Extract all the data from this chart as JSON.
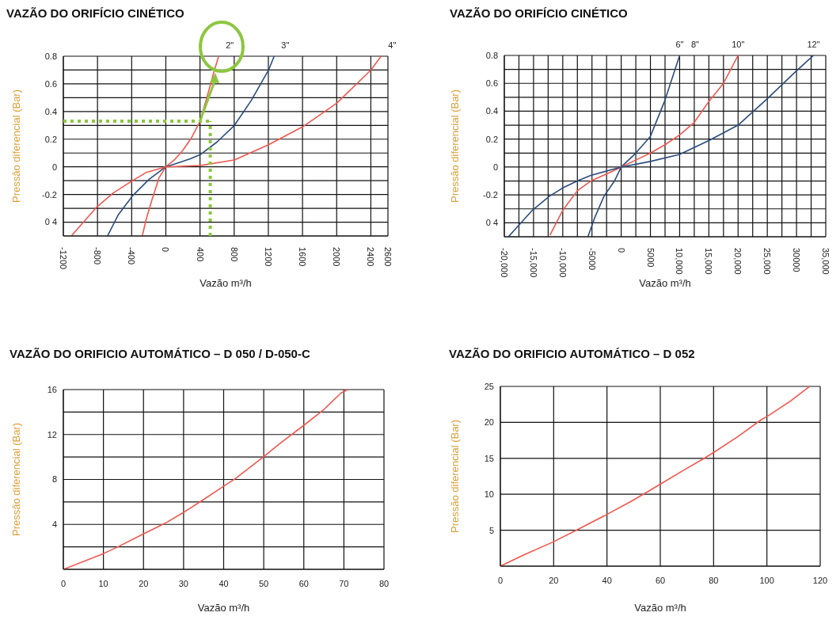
{
  "chart_data": [
    {
      "type": "line",
      "title": "VAZÃO DO ORIFÍCIO CINÉTICO",
      "xlabel": "Vazão m³/h",
      "ylabel": "Pressão diferencial (Bar)",
      "xlim": [
        -1200,
        2600
      ],
      "ylim": [
        -0.5,
        0.8
      ],
      "xticks": [
        -1200,
        -800,
        -400,
        0,
        400,
        800,
        1200,
        1600,
        2000,
        2400,
        2600
      ],
      "yticks": [
        {
          "value": -0.5,
          "label": null
        },
        {
          "value": -0.4,
          "label": "0 4"
        },
        {
          "value": -0.3,
          "label": null
        },
        -0.2,
        {
          "value": -0.1,
          "label": null
        },
        0,
        {
          "value": 0.1,
          "label": null
        },
        0.2,
        {
          "value": 0.3,
          "label": null
        },
        0.4,
        {
          "value": 0.5,
          "label": null
        },
        0.6,
        {
          "value": 0.7,
          "label": null
        },
        0.8
      ],
      "grid": true,
      "series": [
        {
          "color": "#f2574e",
          "x": [
            -276,
            -230,
            -163,
            -80,
            0,
            100,
            200,
            300,
            400,
            480,
            560,
            618
          ],
          "values": [
            -0.5,
            -0.38,
            -0.24,
            -0.08,
            0,
            0.05,
            0.12,
            0.21,
            0.33,
            0.5,
            0.68,
            0.8
          ]
        },
        {
          "color": "#2b4c7e",
          "x": [
            -683,
            -560,
            -390,
            -195,
            0,
            150,
            293,
            407,
            600,
            803,
            1000,
            1203,
            1268
          ],
          "values": [
            -0.5,
            -0.35,
            -0.21,
            -0.09,
            0,
            0.03,
            0.06,
            0.09,
            0.18,
            0.3,
            0.48,
            0.7,
            0.8
          ]
        },
        {
          "color": "#f2574e",
          "x": [
            -1106,
            -950,
            -807,
            -618,
            -390,
            -228,
            0,
            407,
            803,
            1203,
            1603,
            2000,
            2400,
            2520
          ],
          "values": [
            -0.5,
            -0.39,
            -0.29,
            -0.19,
            -0.1,
            -0.04,
            0,
            0.01,
            0.05,
            0.16,
            0.29,
            0.46,
            0.7,
            0.8
          ]
        }
      ],
      "annotations": [
        {
          "text": "2\"",
          "x": 618,
          "y": 0.8
        },
        {
          "text": "3\"",
          "x": 1268,
          "y": 0.8
        },
        {
          "text": "4\"",
          "x": 2520,
          "y": 0.8
        }
      ],
      "ref_lines": [
        {
          "axis": "y",
          "value": 0.33,
          "color": "#8cc63f",
          "line_style": "dotted"
        },
        {
          "axis": "x",
          "value": 520,
          "color": "#8cc63f",
          "line_style": "dotted"
        }
      ]
    },
    {
      "type": "line",
      "title": "VAZÃO DO ORIFÍCIO CINÉTICO",
      "xlabel": "Vazão m³/h",
      "ylabel": "Pressão diferencial (Bar)",
      "xlim": [
        -20000,
        35000
      ],
      "ylim": [
        -0.5,
        0.8
      ],
      "xticks": [
        {
          "value": -20000,
          "label": "-20,000"
        },
        {
          "value": -17500,
          "label": null
        },
        {
          "value": -15000,
          "label": "-15,000"
        },
        {
          "value": -12500,
          "label": null
        },
        {
          "value": -10000,
          "label": "-10,000"
        },
        {
          "value": -7500,
          "label": null
        },
        -5000,
        {
          "value": -2500,
          "label": null
        },
        0,
        {
          "value": 2500,
          "label": null
        },
        5000,
        {
          "value": 7500,
          "label": null
        },
        {
          "value": 10000,
          "label": "10,000"
        },
        {
          "value": 12500,
          "label": null
        },
        {
          "value": 15000,
          "label": "15,000"
        },
        {
          "value": 17500,
          "label": null
        },
        {
          "value": 20000,
          "label": "20,000"
        },
        {
          "value": 22500,
          "label": null
        },
        {
          "value": 25000,
          "label": "25,000"
        },
        {
          "value": 27500,
          "label": null
        },
        30000,
        {
          "value": 32500,
          "label": null
        },
        {
          "value": 35000,
          "label": "35,000"
        }
      ],
      "yticks": [
        {
          "value": -0.5,
          "label": null
        },
        {
          "value": -0.4,
          "label": "0 4"
        },
        {
          "value": -0.3,
          "label": null
        },
        -0.2,
        {
          "value": -0.1,
          "label": null
        },
        0,
        {
          "value": 0.1,
          "label": null
        },
        0.2,
        {
          "value": 0.3,
          "label": null
        },
        0.4,
        {
          "value": 0.5,
          "label": null
        },
        0.6,
        {
          "value": 0.7,
          "label": null
        },
        0.8
      ],
      "grid": true,
      "series": [
        {
          "color": "#2b4c7e",
          "x": [
            -5700,
            -4500,
            -2950,
            -1150,
            0,
            2500,
            5000,
            7500,
            10000
          ],
          "values": [
            -0.5,
            -0.36,
            -0.21,
            -0.1,
            0,
            0.1,
            0.22,
            0.48,
            0.8
          ]
        },
        {
          "color": "#f2574e",
          "x": [
            -12200,
            -10000,
            -7500,
            -5200,
            -2500,
            0,
            2500,
            5000,
            7500,
            10000,
            12500,
            15000,
            17500,
            20000
          ],
          "values": [
            -0.49,
            -0.31,
            -0.17,
            -0.1,
            -0.05,
            0,
            0.05,
            0.1,
            0.16,
            0.23,
            0.32,
            0.47,
            0.6,
            0.8
          ]
        },
        {
          "color": "#2b4c7e",
          "x": [
            -19300,
            -15200,
            -12300,
            -10000,
            -7500,
            -5200,
            0,
            5000,
            10000,
            15000,
            20000,
            25000,
            30000,
            32900
          ],
          "values": [
            -0.5,
            -0.31,
            -0.21,
            -0.15,
            -0.1,
            -0.06,
            0,
            0.04,
            0.09,
            0.19,
            0.3,
            0.49,
            0.69,
            0.8
          ]
        }
      ],
      "annotations": [
        {
          "text": "6\"",
          "x": 10000,
          "y": 0.8
        },
        "8\"",
        {
          "text": "10\"",
          "x": 20000,
          "y": 0.8
        },
        {
          "text": "12\"",
          "x": 32900,
          "y": 0.8
        }
      ]
    },
    {
      "type": "line",
      "title": "VAZÃO DO ORIFICIO AUTOMÁTICO – D 050 / D-050-C",
      "xlabel": "Vazão m³/h",
      "ylabel": "Pressão diferencial (Bar)",
      "xlim": [
        0,
        80
      ],
      "ylim": [
        0,
        16
      ],
      "xticks": [
        0,
        10,
        20,
        30,
        40,
        50,
        60,
        70,
        80
      ],
      "yticks": [
        {
          "value": 0,
          "label": null
        },
        {
          "value": 2,
          "label": null
        },
        4,
        {
          "value": 6,
          "label": null
        },
        8,
        {
          "value": 10,
          "label": null
        },
        12,
        {
          "value": 14,
          "label": null
        },
        16
      ],
      "grid": true,
      "series": [
        {
          "color": "#f2574e",
          "x": [
            0,
            10,
            13.6,
            19.7,
            25.4,
            29.7,
            34.5,
            39.6,
            43,
            49.5,
            54.4,
            59.2,
            64.6,
            69.3,
            71
          ],
          "values": [
            0,
            1.4,
            2,
            3.1,
            4.1,
            5,
            6.1,
            7.3,
            8.1,
            9.9,
            11.3,
            12.6,
            14.1,
            15.7,
            16
          ]
        }
      ]
    },
    {
      "type": "line",
      "title": "VAZÃO DO ORIFICIO AUTOMÁTICO – D 052",
      "xlabel": "Vazão m³/h",
      "ylabel": "Pressão diferencial (Bar)",
      "xlim": [
        0,
        120
      ],
      "ylim": [
        0,
        25
      ],
      "xticks": [
        0,
        20,
        40,
        60,
        80,
        100,
        120
      ],
      "yticks": [
        {
          "value": 0,
          "label": null
        },
        5,
        10,
        15,
        20,
        25
      ],
      "grid": true,
      "series": [
        {
          "color": "#f2574e",
          "x": [
            0,
            9,
            20,
            29,
            40,
            49,
            55,
            60,
            69,
            76,
            80,
            89,
            98,
            100,
            109,
            116
          ],
          "values": [
            0,
            1.6,
            3.4,
            5.1,
            7.2,
            9,
            10.3,
            11.4,
            13.4,
            14.9,
            15.8,
            18,
            20.4,
            20.8,
            23,
            25
          ]
        }
      ]
    }
  ]
}
